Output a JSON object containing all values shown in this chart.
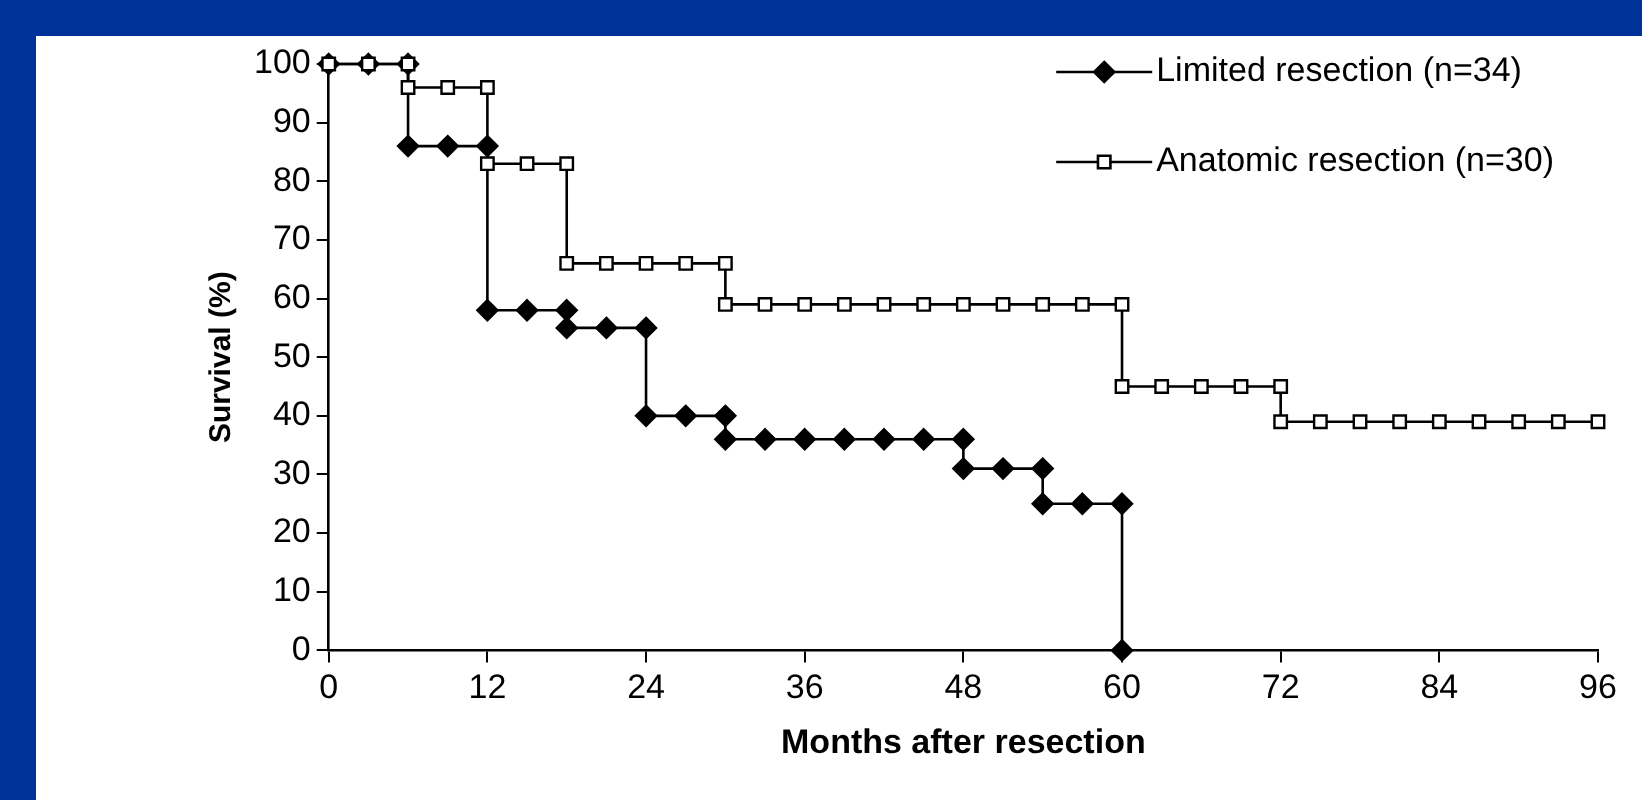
{
  "chart_data": {
    "type": "line",
    "xlabel": "Months after resection",
    "ylabel": "Survival (%)",
    "xlim": [
      0,
      96
    ],
    "xticks": [
      0,
      12,
      24,
      36,
      48,
      60,
      72,
      84,
      96
    ],
    "ylim": [
      0,
      100
    ],
    "yticks": [
      0,
      10,
      20,
      30,
      40,
      50,
      60,
      70,
      80,
      90,
      100
    ],
    "grid": false,
    "legend": "top right",
    "line_style": "solid",
    "series": [
      {
        "name": "Limited resection (n=34)",
        "color": "#000000",
        "marker": "diamond",
        "x": [
          0,
          3,
          6,
          6,
          9,
          12,
          12,
          15,
          18,
          18,
          21,
          24,
          24,
          27,
          30,
          30,
          33,
          36,
          39,
          42,
          45,
          48,
          48,
          51,
          54,
          54,
          57,
          60,
          60
        ],
        "values": [
          100,
          100,
          100,
          86,
          86,
          86,
          58,
          58,
          58,
          55,
          55,
          55,
          40,
          40,
          40,
          36,
          36,
          36,
          36,
          36,
          36,
          36,
          31,
          31,
          31,
          25,
          25,
          25,
          0
        ]
      },
      {
        "name": "Anatomic resection (n=30)",
        "color": "#000000",
        "marker": "square",
        "x": [
          0,
          3,
          6,
          6,
          9,
          12,
          12,
          15,
          18,
          18,
          21,
          24,
          27,
          30,
          30,
          33,
          36,
          39,
          42,
          45,
          48,
          51,
          54,
          57,
          60,
          60,
          63,
          66,
          69,
          72,
          72,
          75,
          78,
          81,
          84,
          87,
          90,
          93,
          96
        ],
        "values": [
          100,
          100,
          100,
          96,
          96,
          96,
          83,
          83,
          83,
          66,
          66,
          66,
          66,
          66,
          59,
          59,
          59,
          59,
          59,
          59,
          59,
          59,
          59,
          59,
          59,
          45,
          45,
          45,
          45,
          45,
          39,
          39,
          39,
          39,
          39,
          39,
          39,
          39,
          39
        ]
      }
    ]
  }
}
